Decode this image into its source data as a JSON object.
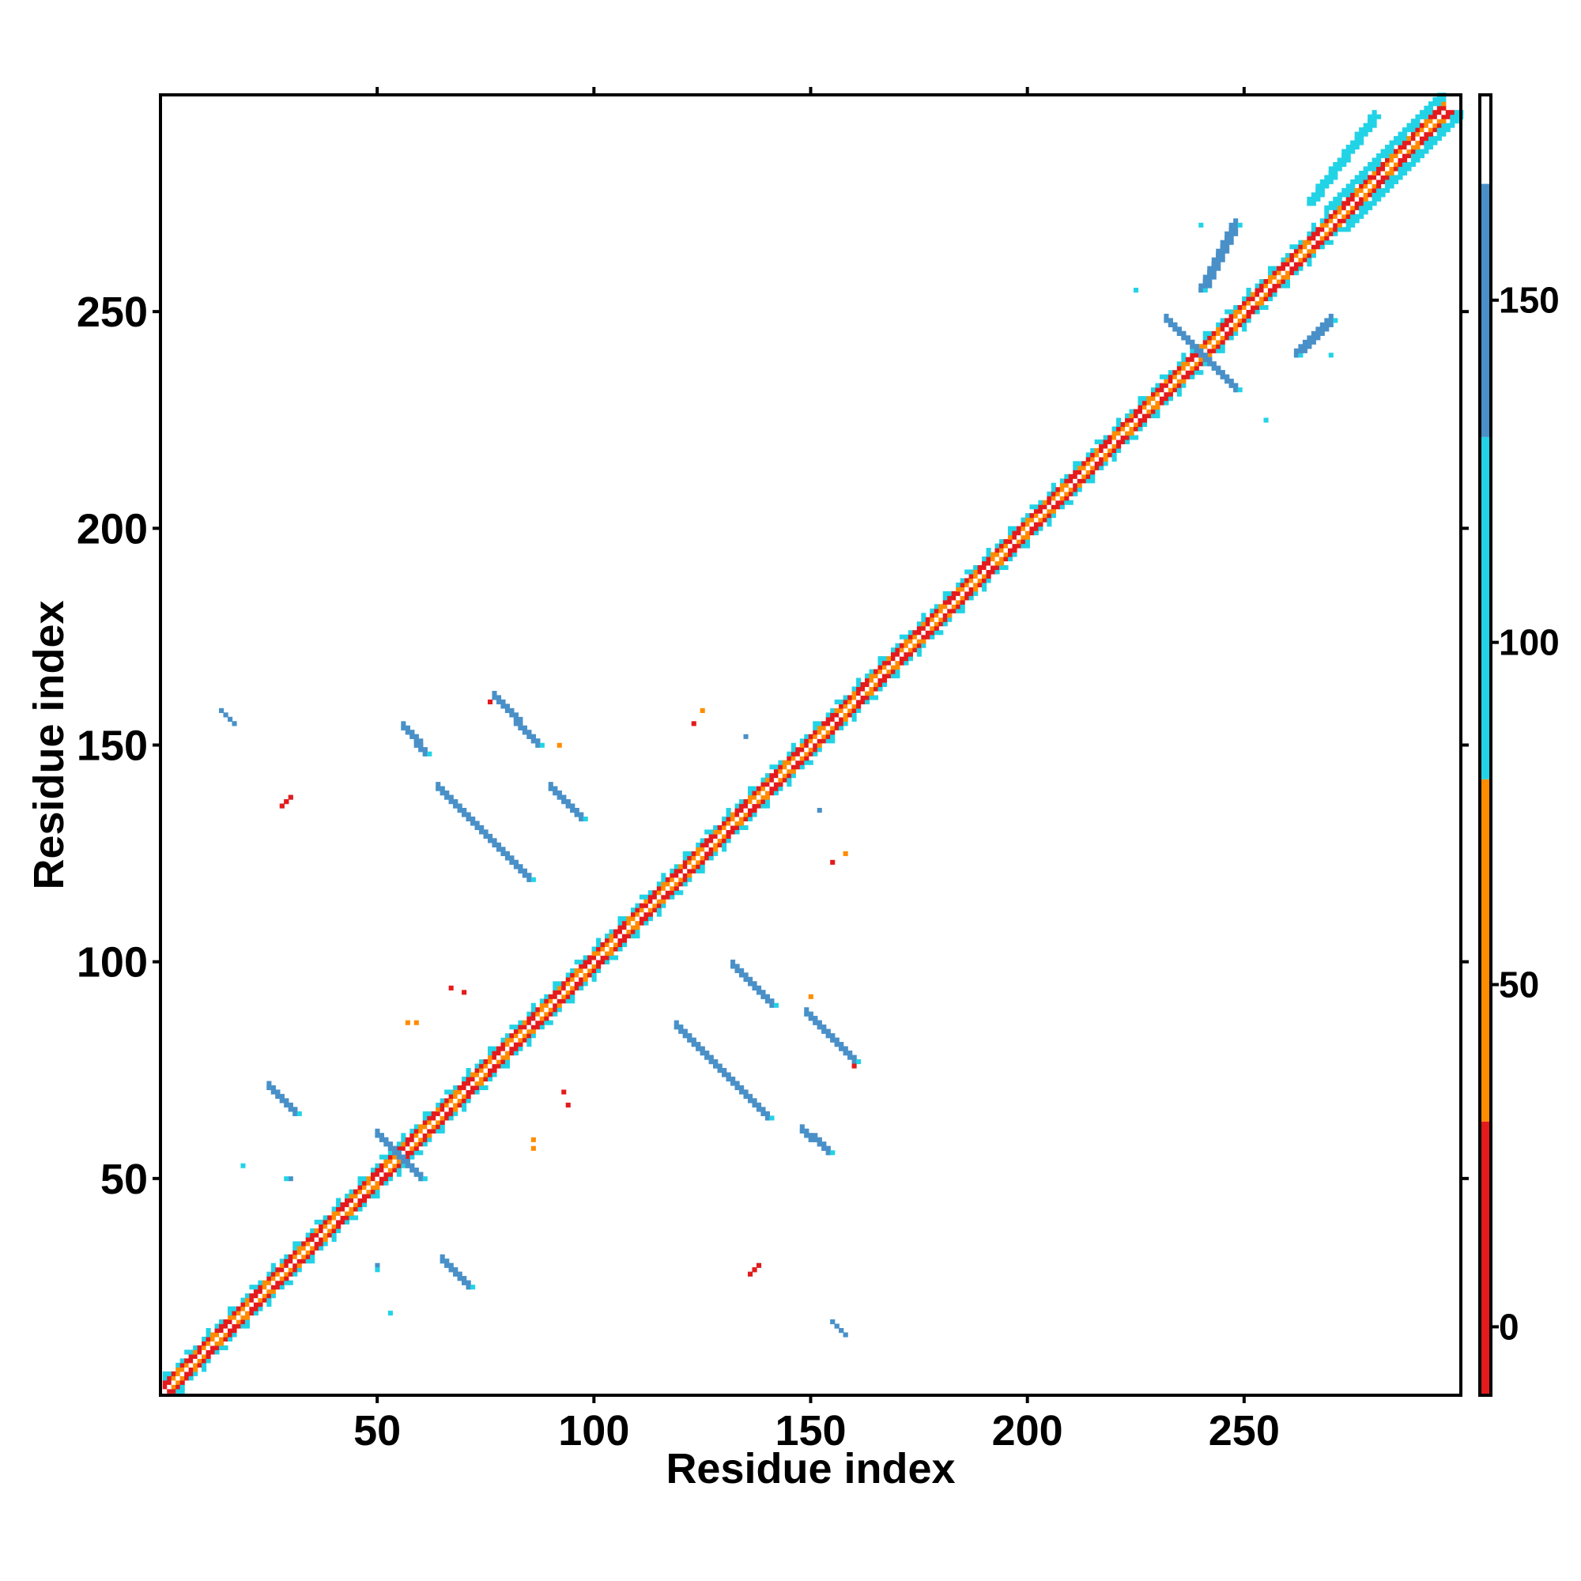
{
  "chart_data": {
    "type": "heatmap",
    "title": "",
    "xlabel": "Residue index",
    "ylabel": "Residue index",
    "xlim": [
      0,
      300
    ],
    "ylim": [
      0,
      300
    ],
    "x_ticks": [
      50,
      100,
      150,
      200,
      250
    ],
    "y_ticks": [
      50,
      100,
      150,
      200,
      250
    ],
    "grid": false,
    "colorbar": {
      "range": [
        -10,
        180
      ],
      "ticks": [
        0,
        50,
        100,
        150
      ],
      "bins": [
        {
          "from": -10,
          "to": 30,
          "color": "#e41a1c"
        },
        {
          "from": 30,
          "to": 80,
          "color": "#ff8c00"
        },
        {
          "from": 80,
          "to": 130,
          "color": "#22d3e6"
        },
        {
          "from": 130,
          "to": 167,
          "color": "#4a90c8"
        },
        {
          "from": 167,
          "to": 180,
          "color": "#ffffff"
        }
      ]
    },
    "diagonal": {
      "from": 1,
      "to": 296,
      "note_values": "near-diagonal contacts low values (red/orange) with cyan flanks"
    },
    "segments": [
      {
        "i": [
          265,
          280
        ],
        "j": [
          275,
          295
        ],
        "value": 110,
        "width": 2
      },
      {
        "i": [
          240,
          248
        ],
        "j": [
          255,
          270
        ],
        "value": 145,
        "width": 2
      },
      {
        "i": [
          232,
          248
        ],
        "j": [
          232,
          248
        ],
        "value": 140,
        "width": 2,
        "anti": true
      },
      {
        "i": [
          262,
          270
        ],
        "j": [
          240,
          248
        ],
        "value": 145,
        "width": 2
      },
      {
        "i": [
          77,
          87
        ],
        "j": [
          150,
          161
        ],
        "value": 145,
        "width": 2,
        "anti": true
      },
      {
        "i": [
          56,
          61
        ],
        "j": [
          148,
          154
        ],
        "value": 145,
        "width": 2,
        "anti": true
      },
      {
        "i": [
          90,
          97
        ],
        "j": [
          133,
          140
        ],
        "value": 145,
        "width": 2,
        "anti": true
      },
      {
        "i": [
          64,
          85
        ],
        "j": [
          119,
          140
        ],
        "value": 145,
        "width": 2,
        "anti": true
      },
      {
        "i": [
          14,
          17
        ],
        "j": [
          155,
          158
        ],
        "value": 145,
        "width": 1,
        "anti": true
      },
      {
        "i": [
          132,
          141
        ],
        "j": [
          90,
          99
        ],
        "value": 145,
        "width": 2,
        "anti": true
      },
      {
        "i": [
          149,
          160
        ],
        "j": [
          77,
          88
        ],
        "value": 145,
        "width": 2,
        "anti": true
      },
      {
        "i": [
          119,
          140
        ],
        "j": [
          64,
          85
        ],
        "value": 145,
        "width": 2,
        "anti": true
      },
      {
        "i": [
          148,
          154
        ],
        "j": [
          56,
          61
        ],
        "value": 145,
        "width": 2,
        "anti": true
      },
      {
        "i": [
          25,
          31
        ],
        "j": [
          65,
          71
        ],
        "value": 145,
        "width": 2,
        "anti": true
      },
      {
        "i": [
          65,
          71
        ],
        "j": [
          25,
          31
        ],
        "value": 145,
        "width": 2,
        "anti": true
      },
      {
        "i": [
          50,
          60
        ],
        "j": [
          50,
          60
        ],
        "value": 140,
        "width": 2,
        "anti": true
      },
      {
        "i": [
          155,
          158
        ],
        "j": [
          14,
          17
        ],
        "value": 145,
        "width": 1,
        "anti": true
      },
      {
        "i": [
          28,
          30
        ],
        "j": [
          136,
          138
        ],
        "value": 5,
        "width": 1
      },
      {
        "i": [
          136,
          138
        ],
        "j": [
          28,
          30
        ],
        "value": 5,
        "width": 1
      }
    ],
    "points": [
      {
        "i": 135,
        "j": 152,
        "value": 145
      },
      {
        "i": 152,
        "j": 135,
        "value": 145
      },
      {
        "i": 123,
        "j": 155,
        "value": 5
      },
      {
        "i": 125,
        "j": 158,
        "value": 40
      },
      {
        "i": 155,
        "j": 123,
        "value": 5
      },
      {
        "i": 158,
        "j": 125,
        "value": 40
      },
      {
        "i": 94,
        "j": 67,
        "value": 20
      },
      {
        "i": 67,
        "j": 94,
        "value": 20
      },
      {
        "i": 86,
        "j": 57,
        "value": 40
      },
      {
        "i": 57,
        "j": 86,
        "value": 40
      },
      {
        "i": 70,
        "j": 93,
        "value": 10
      },
      {
        "i": 93,
        "j": 70,
        "value": 10
      },
      {
        "i": 59,
        "j": 86,
        "value": 40
      },
      {
        "i": 86,
        "j": 59,
        "value": 40
      },
      {
        "i": 53,
        "j": 19,
        "value": 110
      },
      {
        "i": 19,
        "j": 53,
        "value": 110
      },
      {
        "i": 30,
        "j": 50,
        "value": 145
      },
      {
        "i": 50,
        "j": 30,
        "value": 145
      },
      {
        "i": 50,
        "j": 29,
        "value": 110
      },
      {
        "i": 29,
        "j": 50,
        "value": 110
      },
      {
        "i": 255,
        "j": 225,
        "value": 110
      },
      {
        "i": 225,
        "j": 255,
        "value": 110
      },
      {
        "i": 240,
        "j": 270,
        "value": 110
      },
      {
        "i": 270,
        "j": 240,
        "value": 110
      },
      {
        "i": 160,
        "j": 76,
        "value": 10
      },
      {
        "i": 76,
        "j": 160,
        "value": 10
      },
      {
        "i": 150,
        "j": 92,
        "value": 40
      },
      {
        "i": 92,
        "j": 150,
        "value": 40
      }
    ]
  }
}
